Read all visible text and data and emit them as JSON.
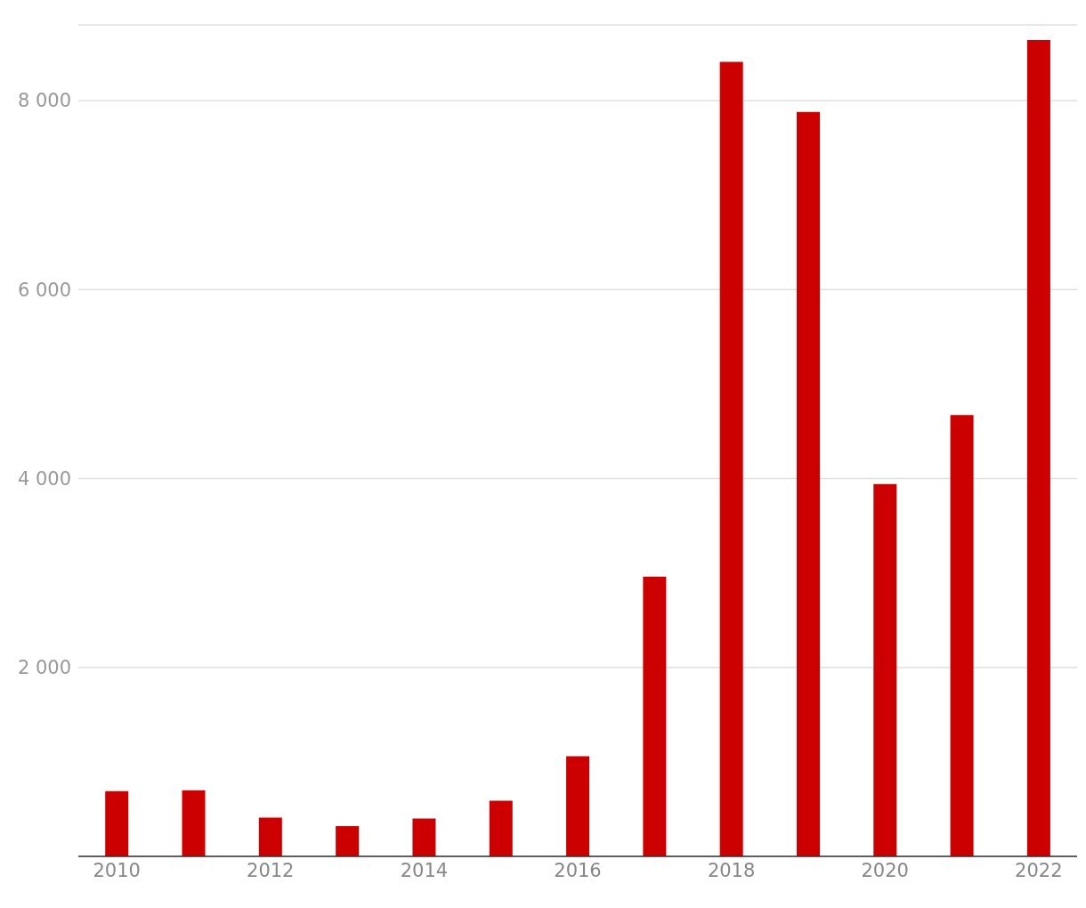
{
  "chart_data": {
    "type": "bar",
    "categories": [
      "2010",
      null,
      "2012",
      null,
      "2014",
      null,
      "2016",
      null,
      "2018",
      null,
      "2020",
      null,
      "2022"
    ],
    "values": [
      690,
      700,
      410,
      320,
      400,
      590,
      1060,
      2960,
      8410,
      7880,
      3940,
      4670,
      8640
    ],
    "color": "#cc0000",
    "ylim": [
      0,
      8800
    ],
    "yticks": [
      {
        "value": 2000,
        "label": "2 000"
      },
      {
        "value": 4000,
        "label": "4 000"
      },
      {
        "value": 6000,
        "label": "6 000"
      },
      {
        "value": 8000,
        "label": "8 000"
      }
    ],
    "grid": "y"
  }
}
